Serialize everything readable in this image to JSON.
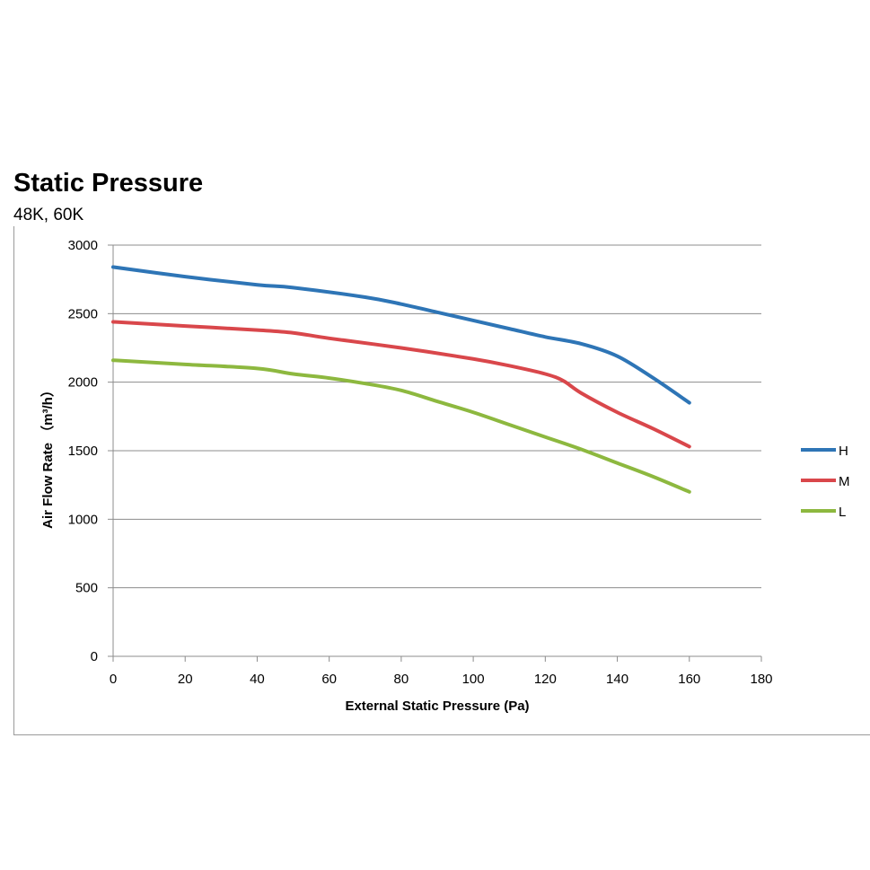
{
  "chart_data": {
    "type": "line",
    "title": "Static Pressure",
    "subtitle": "48K, 60K",
    "xlabel": "External Static Pressure (Pa)",
    "ylabel": "Air Flow Rate （m³/h）",
    "xlim": [
      0,
      180
    ],
    "ylim": [
      0,
      3000
    ],
    "xticks": [
      0,
      20,
      40,
      60,
      80,
      100,
      120,
      140,
      160,
      180
    ],
    "yticks": [
      0,
      500,
      1000,
      1500,
      2000,
      2500,
      3000
    ],
    "grid": "horizontal",
    "legend_position": "right",
    "series": [
      {
        "name": "H",
        "color": "#2e75b6",
        "x": [
          0,
          20,
          40,
          50,
          70,
          80,
          90,
          100,
          110,
          120,
          130,
          140,
          150,
          160
        ],
        "y": [
          2840,
          2770,
          2710,
          2690,
          2620,
          2570,
          2510,
          2450,
          2390,
          2330,
          2280,
          2190,
          2030,
          1850
        ]
      },
      {
        "name": "M",
        "color": "#d9474b",
        "x": [
          0,
          20,
          40,
          50,
          60,
          80,
          100,
          110,
          120,
          125,
          130,
          140,
          150,
          160
        ],
        "y": [
          2440,
          2410,
          2380,
          2360,
          2320,
          2250,
          2170,
          2120,
          2060,
          2010,
          1920,
          1780,
          1660,
          1530
        ]
      },
      {
        "name": "L",
        "color": "#8db83f",
        "x": [
          0,
          20,
          40,
          50,
          60,
          70,
          80,
          90,
          100,
          110,
          120,
          130,
          140,
          150,
          160
        ],
        "y": [
          2160,
          2130,
          2100,
          2060,
          2030,
          1990,
          1940,
          1860,
          1780,
          1690,
          1600,
          1510,
          1410,
          1310,
          1200
        ]
      }
    ]
  }
}
